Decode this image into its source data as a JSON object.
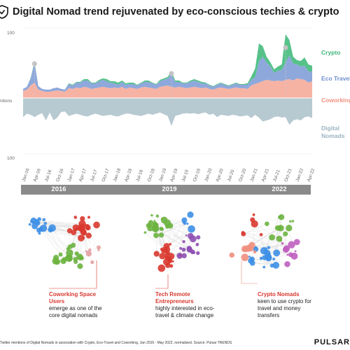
{
  "title": "Digital Nomad trend rejuvenated by eco-conscious techies & crypto",
  "chart_data": {
    "type": "area",
    "axis": {
      "top_value_label": "100",
      "bottom_value_label": "100",
      "middle_label": "ntions"
    },
    "x": [
      "Jan-16",
      "Feb-16",
      "Mar-16",
      "Apr-16",
      "May-16",
      "Jun-16",
      "Jul-16",
      "Aug-16",
      "Sep-16",
      "Oct-16",
      "Nov-16",
      "Dec-16",
      "Jan-17",
      "Feb-17",
      "Mar-17",
      "Apr-17",
      "May-17",
      "Jun-17",
      "Jul-17",
      "Aug-17",
      "Sep-17",
      "Oct-17",
      "Nov-17",
      "Dec-17",
      "Jan-18",
      "Feb-18",
      "Mar-18",
      "Apr-18",
      "May-18",
      "Jun-18",
      "Jul-18",
      "Aug-18",
      "Sep-18",
      "Oct-18",
      "Nov-18",
      "Dec-18",
      "Jan-19",
      "Feb-19",
      "Mar-19",
      "Apr-19",
      "May-19",
      "Jun-19",
      "Jul-19",
      "Aug-19",
      "Sep-19",
      "Oct-19",
      "Nov-19",
      "Dec-19",
      "Jan-20",
      "Feb-20",
      "Mar-20",
      "Apr-20",
      "May-20",
      "Jun-20",
      "Jul-20",
      "Aug-20",
      "Sep-20",
      "Oct-20",
      "Nov-20",
      "Dec-20",
      "Jan-21",
      "Feb-21",
      "Mar-21",
      "Apr-21",
      "May-21",
      "Jun-21",
      "Jul-21",
      "Aug-21",
      "Sep-21",
      "Oct-21",
      "Nov-21",
      "Dec-21",
      "Jan-22",
      "Feb-22",
      "Mar-22",
      "Apr-22",
      "May-22"
    ],
    "tick_labels": [
      "Jan-16",
      "Apr-16",
      "Jul-16",
      "Oct-16",
      "Jan-17",
      "Apr-17",
      "Jul-17",
      "Oct-17",
      "Jan-18",
      "Apr-18",
      "Jul-18",
      "Oct-18",
      "Jan-19",
      "Apr-19",
      "Jul-19",
      "Oct-19",
      "Jan-20",
      "Apr-20",
      "Jul-20",
      "Oct-20",
      "Jan-21",
      "Apr-21",
      "Jul-21",
      "Oct-21",
      "Jan-22",
      "Apr-22"
    ],
    "series": [
      {
        "name": "Coworking",
        "color": "#f6b3a4",
        "label_color": "#f08f7f",
        "values": [
          10,
          12,
          18,
          22,
          12,
          10,
          9,
          9,
          10,
          11,
          10,
          9,
          14,
          13,
          15,
          14,
          16,
          15,
          13,
          14,
          15,
          16,
          15,
          14,
          15,
          14,
          16,
          13,
          15,
          14,
          13,
          15,
          16,
          15,
          14,
          13,
          16,
          17,
          18,
          16,
          15,
          16,
          15,
          14,
          15,
          16,
          15,
          14,
          15,
          13,
          12,
          14,
          15,
          14,
          13,
          14,
          15,
          14,
          14,
          13,
          18,
          20,
          22,
          24,
          26,
          25,
          24,
          25,
          24,
          26,
          27,
          25,
          28,
          27,
          26,
          22,
          24
        ]
      },
      {
        "name": "Eco Travel",
        "color": "#8fa8dc",
        "label_color": "#6f8fd0",
        "values": [
          3,
          4,
          10,
          28,
          5,
          3,
          3,
          3,
          4,
          4,
          3,
          3,
          6,
          5,
          7,
          8,
          9,
          10,
          8,
          7,
          9,
          10,
          9,
          8,
          6,
          5,
          7,
          6,
          5,
          6,
          5,
          6,
          7,
          8,
          7,
          6,
          8,
          9,
          10,
          18,
          8,
          7,
          6,
          7,
          8,
          9,
          8,
          7,
          6,
          5,
          4,
          5,
          6,
          5,
          4,
          5,
          6,
          5,
          5,
          6,
          8,
          10,
          30,
          35,
          25,
          20,
          12,
          14,
          16,
          25,
          34,
          24,
          20,
          18,
          20,
          16,
          14
        ]
      },
      {
        "name": "Crypto",
        "color": "#56c28a",
        "label_color": "#3fb47a",
        "values": [
          0,
          0,
          1,
          2,
          0,
          0,
          0,
          0,
          0,
          0,
          0,
          0,
          1,
          1,
          1,
          1,
          2,
          2,
          1,
          1,
          2,
          2,
          3,
          2,
          3,
          3,
          2,
          2,
          2,
          2,
          1,
          1,
          2,
          2,
          1,
          1,
          2,
          2,
          2,
          4,
          2,
          2,
          1,
          1,
          2,
          2,
          2,
          2,
          1,
          1,
          1,
          1,
          1,
          1,
          1,
          1,
          1,
          1,
          1,
          2,
          5,
          12,
          26,
          15,
          8,
          6,
          5,
          6,
          8,
          40,
          22,
          10,
          6,
          8,
          12,
          10,
          8
        ]
      },
      {
        "name": "Digital Nomads",
        "color": "#b7c9d1",
        "label_color": "#9bb3c1",
        "values": [
          34,
          28,
          30,
          34,
          30,
          27,
          40,
          26,
          40,
          35,
          25,
          24,
          32,
          30,
          28,
          30,
          32,
          33,
          30,
          28,
          30,
          32,
          31,
          30,
          32,
          33,
          30,
          28,
          28,
          30,
          31,
          32,
          30,
          28,
          30,
          28,
          26,
          29,
          32,
          50,
          32,
          30,
          28,
          27,
          28,
          27,
          29,
          27,
          26,
          30,
          28,
          34,
          30,
          31,
          32,
          30,
          31,
          33,
          32,
          31,
          36,
          30,
          35,
          42,
          40,
          38,
          34,
          33,
          35,
          34,
          48,
          40,
          38,
          40,
          34,
          33,
          36
        ]
      }
    ],
    "timeline_years": [
      "2016",
      "2019",
      "2022"
    ]
  },
  "clusters": [
    {
      "highlight": "Coworking Space Users",
      "rest": "emerge as one of the core digital nomads"
    },
    {
      "highlight": "Tech Remote Entrepreneurs",
      "rest": "highly interested in eco-travel & climate change"
    },
    {
      "highlight": "Crypto Nomads",
      "rest": "keen to use crypto for travel and money transfers"
    }
  ],
  "footnote": "Twitter mentions of Digital Nomads in association with Crypto, Eco-Travel and Coworking, Jan 2016 - May 2022, normalized. Source: Pulsar TRENDS",
  "brand": "PULSAR"
}
